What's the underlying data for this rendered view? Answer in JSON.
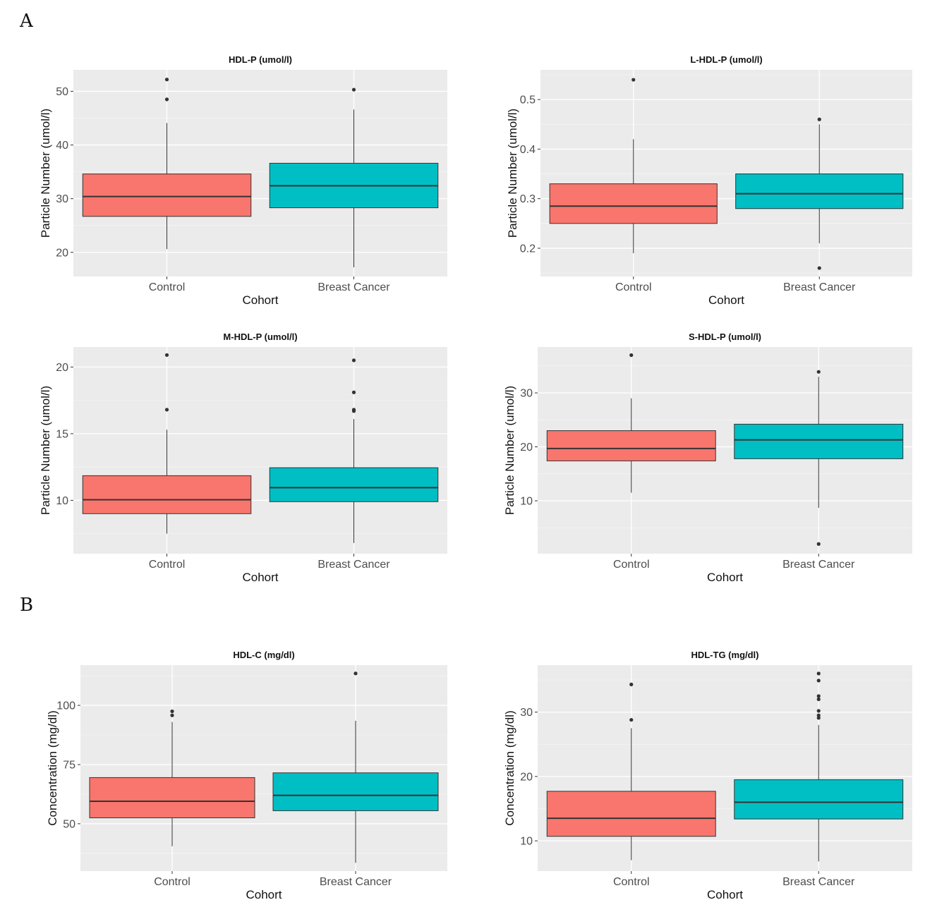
{
  "figure": {
    "panel_labels": [
      "A",
      "B"
    ]
  },
  "colors": {
    "panel_bg": "#ebebeb",
    "grid_major": "#ffffff",
    "grid_minor": "#f5f5f5",
    "box_outline": "#333333",
    "text": "#111111",
    "tick_text": "#4d4d4d"
  },
  "chart_data": [
    {
      "type": "box",
      "title": "HDL-P (umol/l)",
      "xlabel": "Cohort",
      "ylabel": "Particle Number (umol/l)",
      "ylim": [
        15.5,
        54
      ],
      "yticks": [
        20,
        30,
        40,
        50
      ],
      "ytick_labels": [
        "20",
        "30",
        "40",
        "50"
      ],
      "categories": [
        "Control",
        "Breast Cancer"
      ],
      "series": [
        {
          "name": "Control",
          "color": "#f8766d",
          "q1": 26.7,
          "median": 30.4,
          "q3": 34.6,
          "whisker_low": 20.6,
          "whisker_high": 44.1,
          "outliers": [
            52.2,
            48.5
          ]
        },
        {
          "name": "Breast Cancer",
          "color": "#00bfc4",
          "q1": 28.3,
          "median": 32.4,
          "q3": 36.6,
          "whisker_low": 17.2,
          "whisker_high": 46.6,
          "outliers": [
            50.3
          ]
        }
      ]
    },
    {
      "type": "box",
      "title": "L-HDL-P (umol/l)",
      "xlabel": "Cohort",
      "ylabel": "Particle Number (umol/l)",
      "ylim": [
        0.143,
        0.56
      ],
      "yticks": [
        0.2,
        0.3,
        0.4,
        0.5
      ],
      "ytick_labels": [
        "0.2",
        "0.3",
        "0.4",
        "0.5"
      ],
      "categories": [
        "Control",
        "Breast Cancer"
      ],
      "series": [
        {
          "name": "Control",
          "color": "#f8766d",
          "q1": 0.25,
          "median": 0.285,
          "q3": 0.33,
          "whisker_low": 0.19,
          "whisker_high": 0.42,
          "outliers": [
            0.54
          ]
        },
        {
          "name": "Breast Cancer",
          "color": "#00bfc4",
          "q1": 0.28,
          "median": 0.31,
          "q3": 0.35,
          "whisker_low": 0.21,
          "whisker_high": 0.45,
          "outliers": [
            0.46,
            0.16
          ]
        }
      ]
    },
    {
      "type": "box",
      "title": "M-HDL-P (umol/l)",
      "xlabel": "Cohort",
      "ylabel": "Particle Number (umol/l)",
      "ylim": [
        6.0,
        21.5
      ],
      "yticks": [
        10,
        15,
        20
      ],
      "ytick_labels": [
        "10",
        "15",
        "20"
      ],
      "categories": [
        "Control",
        "Breast Cancer"
      ],
      "series": [
        {
          "name": "Control",
          "color": "#f8766d",
          "q1": 9.0,
          "median": 10.05,
          "q3": 11.85,
          "whisker_low": 7.5,
          "whisker_high": 15.3,
          "outliers": [
            20.9,
            16.8
          ]
        },
        {
          "name": "Breast Cancer",
          "color": "#00bfc4",
          "q1": 9.9,
          "median": 10.95,
          "q3": 12.45,
          "whisker_low": 6.8,
          "whisker_high": 16.1,
          "outliers": [
            20.5,
            18.1,
            16.7,
            16.8
          ]
        }
      ]
    },
    {
      "type": "box",
      "title": "S-HDL-P (umol/l)",
      "xlabel": "Cohort",
      "ylabel": "Particle Number (umol/l)",
      "ylim": [
        0.2,
        38.5
      ],
      "yticks": [
        10,
        20,
        30
      ],
      "ytick_labels": [
        "10",
        "20",
        "30"
      ],
      "categories": [
        "Control",
        "Breast Cancer"
      ],
      "series": [
        {
          "name": "Control",
          "color": "#f8766d",
          "q1": 17.4,
          "median": 19.7,
          "q3": 23.0,
          "whisker_low": 11.5,
          "whisker_high": 29.0,
          "outliers": [
            37.0
          ]
        },
        {
          "name": "Breast Cancer",
          "color": "#00bfc4",
          "q1": 17.8,
          "median": 21.3,
          "q3": 24.2,
          "whisker_low": 8.7,
          "whisker_high": 33.0,
          "outliers": [
            33.9,
            2.0
          ]
        }
      ]
    },
    {
      "type": "box",
      "title": "HDL-C (mg/dl)",
      "xlabel": "Cohort",
      "ylabel": "Concentration (mg/dl)",
      "ylim": [
        30,
        117
      ],
      "yticks": [
        50,
        75,
        100
      ],
      "ytick_labels": [
        "50",
        "75",
        "100"
      ],
      "categories": [
        "Control",
        "Breast Cancer"
      ],
      "series": [
        {
          "name": "Control",
          "color": "#f8766d",
          "q1": 52.5,
          "median": 59.5,
          "q3": 69.5,
          "whisker_low": 40.5,
          "whisker_high": 93.0,
          "outliers": [
            97.5,
            95.8
          ]
        },
        {
          "name": "Breast Cancer",
          "color": "#00bfc4",
          "q1": 55.5,
          "median": 62.0,
          "q3": 71.5,
          "whisker_low": 33.5,
          "whisker_high": 93.5,
          "outliers": [
            113.5
          ]
        }
      ]
    },
    {
      "type": "box",
      "title": "HDL-TG (mg/dl)",
      "xlabel": "Cohort",
      "ylabel": "Concentration (mg/dl)",
      "ylim": [
        5.3,
        37.3
      ],
      "yticks": [
        10,
        20,
        30
      ],
      "ytick_labels": [
        "10",
        "20",
        "30"
      ],
      "categories": [
        "Control",
        "Breast Cancer"
      ],
      "series": [
        {
          "name": "Control",
          "color": "#f8766d",
          "q1": 10.7,
          "median": 13.5,
          "q3": 17.7,
          "whisker_low": 7.0,
          "whisker_high": 27.5,
          "outliers": [
            34.3,
            28.8
          ]
        },
        {
          "name": "Breast Cancer",
          "color": "#00bfc4",
          "q1": 13.4,
          "median": 16.0,
          "q3": 19.5,
          "whisker_low": 6.8,
          "whisker_high": 28.0,
          "outliers": [
            36.0,
            34.9,
            32.5,
            32.0,
            30.2,
            29.5,
            29.1
          ]
        }
      ]
    }
  ]
}
